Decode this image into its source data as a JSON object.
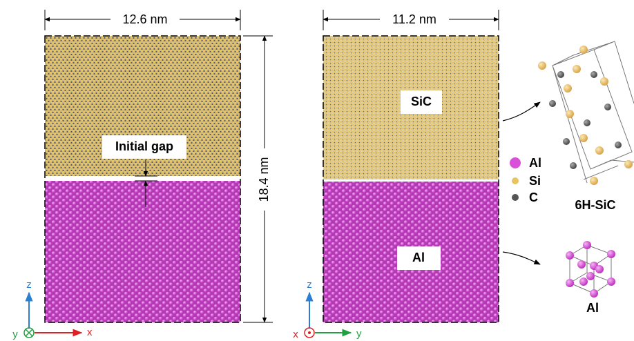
{
  "left_panel": {
    "width_label": "12.6 nm",
    "height_label": "18.4 nm",
    "gap_label": "Initial gap",
    "axes": {
      "vertical": "z",
      "horizontal": "x",
      "normal": "y"
    }
  },
  "right_panel": {
    "width_label": "11.2 nm",
    "sic_label": "SiC",
    "al_label": "Al",
    "axes": {
      "vertical": "z",
      "horizontal": "y",
      "normal": "x"
    }
  },
  "legend": [
    {
      "label": "Al",
      "color": "#d94fd9"
    },
    {
      "label": "Si",
      "color": "#e8c560"
    },
    {
      "label": "C",
      "color": "#555555"
    }
  ],
  "insets": {
    "sic_label": "6H-SiC",
    "al_label": "Al"
  }
}
